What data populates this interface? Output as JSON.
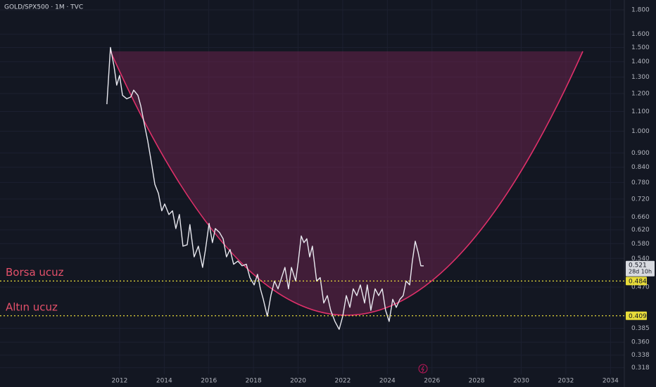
{
  "chart_data": {
    "type": "line",
    "title": "GOLD/SPX500 · 1M · TVC",
    "log_y": true,
    "grid": true,
    "xlim": [
      2006.64,
      2034.62
    ],
    "xticks": [
      2012,
      2014,
      2016,
      2018,
      2020,
      2022,
      2024,
      2026,
      2028,
      2030,
      2032,
      2034
    ],
    "ylim": [
      0.308,
      1.888
    ],
    "yticks": [
      {
        "value": 1.8,
        "label": "1.800"
      },
      {
        "value": 1.6,
        "label": "1.600"
      },
      {
        "value": 1.5,
        "label": "1.500"
      },
      {
        "value": 1.4,
        "label": "1.400"
      },
      {
        "value": 1.3,
        "label": "1.300"
      },
      {
        "value": 1.2,
        "label": "1.200"
      },
      {
        "value": 1.1,
        "label": "1.100"
      },
      {
        "value": 1.0,
        "label": "1.000"
      },
      {
        "value": 0.9,
        "label": "0.900"
      },
      {
        "value": 0.84,
        "label": "0.840"
      },
      {
        "value": 0.78,
        "label": "0.780"
      },
      {
        "value": 0.72,
        "label": "0.720"
      },
      {
        "value": 0.66,
        "label": "0.660"
      },
      {
        "value": 0.62,
        "label": "0.620"
      },
      {
        "value": 0.58,
        "label": "0.580"
      },
      {
        "value": 0.54,
        "label": "0.540"
      },
      {
        "value": 0.47,
        "label": "0.470"
      },
      0.385,
      {
        "value": 0.36,
        "label": "0.360"
      },
      0.338,
      0.318
    ],
    "x": [
      2011.43,
      2011.59,
      2011.75,
      2011.87,
      2012.0,
      2012.13,
      2012.32,
      2012.5,
      2012.63,
      2012.82,
      2012.95,
      2013.1,
      2013.26,
      2013.42,
      2013.58,
      2013.74,
      2013.89,
      2014.02,
      2014.21,
      2014.37,
      2014.52,
      2014.68,
      2014.84,
      2015.03,
      2015.15,
      2015.34,
      2015.53,
      2015.72,
      2015.85,
      2016.01,
      2016.16,
      2016.29,
      2016.48,
      2016.64,
      2016.79,
      2016.95,
      2017.11,
      2017.3,
      2017.49,
      2017.68,
      2017.84,
      2018.03,
      2018.18,
      2018.31,
      2018.44,
      2018.62,
      2018.78,
      2018.94,
      2019.1,
      2019.26,
      2019.41,
      2019.57,
      2019.7,
      2019.89,
      2020.01,
      2020.14,
      2020.26,
      2020.39,
      2020.52,
      2020.64,
      2020.83,
      2020.99,
      2021.15,
      2021.31,
      2021.46,
      2021.65,
      2021.84,
      2022.0,
      2022.16,
      2022.32,
      2022.47,
      2022.63,
      2022.79,
      2022.98,
      2023.1,
      2023.26,
      2023.45,
      2023.61,
      2023.77,
      2023.92,
      2024.08,
      2024.24,
      2024.4,
      2024.56,
      2024.71,
      2024.84,
      2025.0,
      2025.12,
      2025.25,
      2025.38,
      2025.5,
      2025.63
    ],
    "values": [
      1.14,
      1.5,
      1.37,
      1.25,
      1.31,
      1.19,
      1.17,
      1.18,
      1.22,
      1.19,
      1.13,
      1.04,
      0.955,
      0.862,
      0.773,
      0.74,
      0.68,
      0.703,
      0.668,
      0.68,
      0.624,
      0.668,
      0.573,
      0.577,
      0.636,
      0.544,
      0.573,
      0.517,
      0.564,
      0.64,
      0.583,
      0.624,
      0.612,
      0.594,
      0.544,
      0.564,
      0.525,
      0.533,
      0.521,
      0.525,
      0.492,
      0.475,
      0.5,
      0.466,
      0.443,
      0.408,
      0.451,
      0.484,
      0.466,
      0.492,
      0.517,
      0.466,
      0.517,
      0.484,
      0.533,
      0.602,
      0.583,
      0.594,
      0.544,
      0.573,
      0.484,
      0.492,
      0.435,
      0.451,
      0.42,
      0.398,
      0.383,
      0.408,
      0.451,
      0.426,
      0.466,
      0.451,
      0.475,
      0.435,
      0.475,
      0.42,
      0.466,
      0.451,
      0.466,
      0.42,
      0.398,
      0.443,
      0.426,
      0.443,
      0.451,
      0.484,
      0.475,
      0.533,
      0.587,
      0.556,
      0.521,
      0.521
    ],
    "color": "#e9e9f0",
    "horizontal_lines": [
      {
        "name": "Borsa ucuz",
        "value": 0.484,
        "color": "#e8dc3a",
        "label_color": "#e4506a"
      },
      {
        "name": "Altın ucuz",
        "value": 0.409,
        "color": "#e8dc3a",
        "label_color": "#e4506a"
      }
    ],
    "last_price": {
      "value": 0.521,
      "countdown": "28d 10h"
    }
  }
}
